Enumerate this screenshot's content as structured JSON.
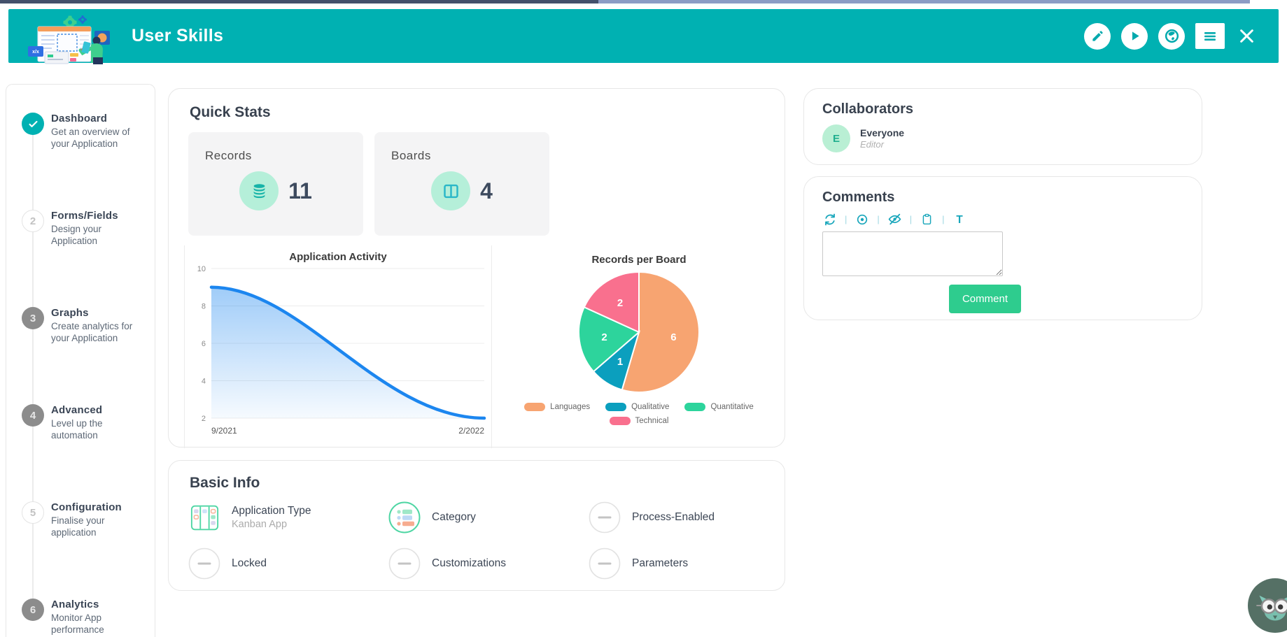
{
  "theme": {
    "teal": "#00b1b2",
    "green": "#2ecc8e",
    "line_blue": "#1c86ef",
    "dark_text": "#39424f"
  },
  "header": {
    "title": "User Skills",
    "actions": [
      {
        "name": "edit",
        "icon": "pencil-icon",
        "style": "circle"
      },
      {
        "name": "run",
        "icon": "play-icon",
        "style": "circle"
      },
      {
        "name": "publish",
        "icon": "globe-icon",
        "style": "circle"
      },
      {
        "name": "menu",
        "icon": "menu-icon",
        "style": "square"
      },
      {
        "name": "close",
        "icon": "close-icon",
        "style": "plain"
      }
    ]
  },
  "sidebar": {
    "steps": [
      {
        "state": "done",
        "number": "1",
        "title": "Dashboard",
        "description": "Get an overview of your Application"
      },
      {
        "state": "outline",
        "number": "2",
        "title": "Forms/Fields",
        "description": "Design your Application"
      },
      {
        "state": "filled",
        "number": "3",
        "title": "Graphs",
        "description": "Create analytics for your Application"
      },
      {
        "state": "filled",
        "number": "4",
        "title": "Advanced",
        "description": "Level up the automation"
      },
      {
        "state": "outline",
        "number": "5",
        "title": "Configuration",
        "description": "Finalise your application"
      },
      {
        "state": "filled",
        "number": "6",
        "title": "Analytics",
        "description": "Monitor App performance"
      }
    ]
  },
  "quick_stats": {
    "title": "Quick Stats",
    "stats": [
      {
        "label": "Records",
        "value": "11",
        "icon": "database-icon"
      },
      {
        "label": "Boards",
        "value": "4",
        "icon": "board-icon"
      }
    ]
  },
  "chart_data": [
    {
      "type": "line",
      "title": "Application Activity",
      "x": [
        "9/2021",
        "2/2022"
      ],
      "series": [
        {
          "name": "Application Activity",
          "values": [
            9,
            2
          ]
        }
      ],
      "ylim": [
        2,
        10
      ],
      "yticks": [
        2,
        4,
        6,
        8,
        10
      ],
      "grid": true,
      "curve": "smooth",
      "line_color": "#1c86ef",
      "area_fill": true
    },
    {
      "type": "pie",
      "title": "Records per Board",
      "categories": [
        "Languages",
        "Qualitative",
        "Quantitative",
        "Technical"
      ],
      "values": [
        6,
        1,
        2,
        2
      ],
      "colors": [
        "#f7a471",
        "#0b9fbe",
        "#2dd49c",
        "#f9708e"
      ],
      "start_angle": "top",
      "direction": "clockwise",
      "label_color": "#ffffff",
      "legend_position": "bottom"
    }
  ],
  "basic_info": {
    "title": "Basic Info",
    "items": [
      {
        "label": "Application Type",
        "value": "Kanban App",
        "icon": "kanban-icon"
      },
      {
        "label": "Category",
        "value": "",
        "icon": "category-icon"
      },
      {
        "label": "Process-Enabled",
        "value": "",
        "icon": "dash-icon"
      },
      {
        "label": "Locked",
        "value": "",
        "icon": "dash-icon"
      },
      {
        "label": "Customizations",
        "value": "",
        "icon": "dash-icon"
      },
      {
        "label": "Parameters",
        "value": "",
        "icon": "dash-icon"
      }
    ]
  },
  "collaborators": {
    "title": "Collaborators",
    "people": [
      {
        "initial": "E",
        "name": "Everyone",
        "role": "Editor"
      }
    ]
  },
  "comments": {
    "title": "Comments",
    "toolbar": [
      "refresh-icon",
      "eye-icon",
      "eye-off-icon",
      "clipboard-icon",
      "text-format-icon"
    ],
    "input_value": "",
    "button_label": "Comment"
  }
}
